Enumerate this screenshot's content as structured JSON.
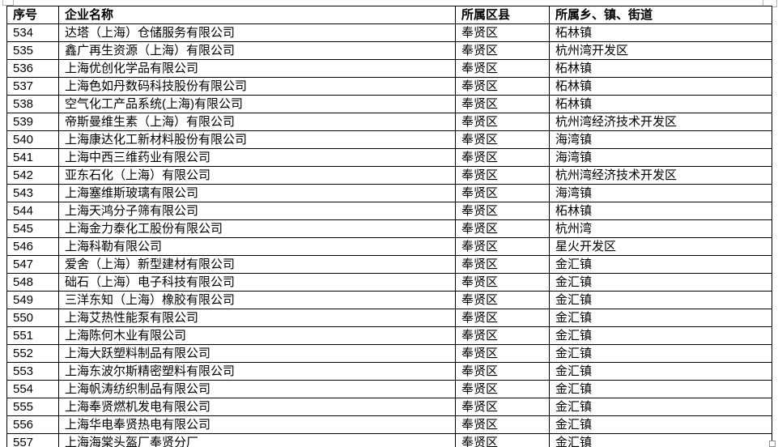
{
  "table": {
    "headers": [
      "序号",
      "企业名称",
      "所属区县",
      "所属乡、镇、街道"
    ],
    "rows": [
      [
        "534",
        "达塔（上海）仓储服务有限公司",
        "奉贤区",
        "柘林镇"
      ],
      [
        "535",
        "鑫广再生资源（上海）有限公司",
        "奉贤区",
        "杭州湾开发区"
      ],
      [
        "536",
        "上海优创化学品有限公司",
        "奉贤区",
        "柘林镇"
      ],
      [
        "537",
        "上海色如丹数码科技股份有限公司",
        "奉贤区",
        "柘林镇"
      ],
      [
        "538",
        "空气化工产品系统(上海)有限公司",
        "奉贤区",
        "柘林镇"
      ],
      [
        "539",
        "帝斯曼维生素（上海）有限公司",
        "奉贤区",
        "杭州湾经济技术开发区"
      ],
      [
        "540",
        "上海康达化工新材料股份有限公司",
        "奉贤区",
        "海湾镇"
      ],
      [
        "541",
        "上海中西三维药业有限公司",
        "奉贤区",
        "海湾镇"
      ],
      [
        "542",
        "亚东石化（上海）有限公司",
        "奉贤区",
        "杭州湾经济技术开发区"
      ],
      [
        "543",
        "上海塞维斯玻璃有限公司",
        "奉贤区",
        "海湾镇"
      ],
      [
        "544",
        "上海天鸿分子筛有限公司",
        "奉贤区",
        "柘林镇"
      ],
      [
        "545",
        "上海金力泰化工股份有限公司",
        "奉贤区",
        "杭州湾"
      ],
      [
        "546",
        "上海科勒有限公司",
        "奉贤区",
        "星火开发区"
      ],
      [
        "547",
        "爱舍（上海）新型建材有限公司",
        "奉贤区",
        "金汇镇"
      ],
      [
        "548",
        "础石（上海）电子科技有限公司",
        "奉贤区",
        "金汇镇"
      ],
      [
        "549",
        "三洋东知（上海）橡胶有限公司",
        "奉贤区",
        "金汇镇"
      ],
      [
        "550",
        "上海艾热性能泵有限公司",
        "奉贤区",
        "金汇镇"
      ],
      [
        "551",
        "上海陈何木业有限公司",
        "奉贤区",
        "金汇镇"
      ],
      [
        "552",
        "上海大跃塑料制品有限公司",
        "奉贤区",
        "金汇镇"
      ],
      [
        "553",
        "上海东波尔斯精密塑料有限公司",
        "奉贤区",
        "金汇镇"
      ],
      [
        "554",
        "上海帆涛纺织制品有限公司",
        "奉贤区",
        "金汇镇"
      ],
      [
        "555",
        "上海奉贤燃机发电有限公司",
        "奉贤区",
        "金汇镇"
      ],
      [
        "556",
        "上海华电奉贤热电有限公司",
        "奉贤区",
        "金汇镇"
      ],
      [
        "557",
        "上海海棠头盔厂奉贤分厂",
        "奉贤区",
        "金汇镇"
      ]
    ]
  },
  "colors": {
    "border": "#000000",
    "text": "#000000",
    "background": "#ffffff",
    "artifact_border": "#b2b2b2"
  }
}
